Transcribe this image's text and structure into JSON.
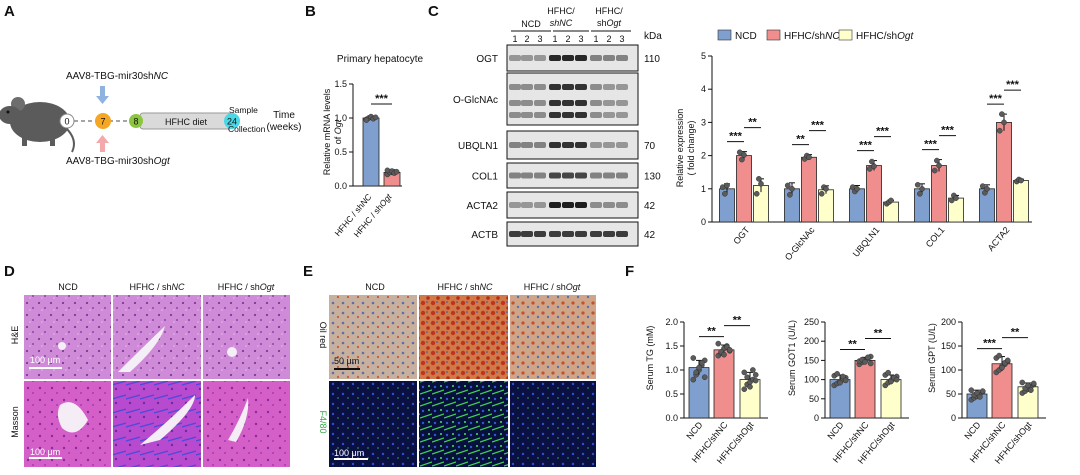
{
  "panels": {
    "a": "A",
    "b": "B",
    "c": "C",
    "d": "D",
    "e": "E",
    "f": "F"
  },
  "colors": {
    "ncd": "#7f9fce",
    "nc": "#f08e8e",
    "ogt": "#ffffcc",
    "dot": "#5b5b5b",
    "arrow_blue": "#8fb2e0",
    "arrow_pink": "#f3a9a9",
    "week7": "#f5a623",
    "week8": "#8cc63f",
    "week24": "#4ad7e6"
  },
  "panel_a": {
    "top_vector": "AAV8-TBG-mir30sh",
    "top_vector_gene": "NC",
    "bottom_vector": "AAV8-TBG-mir30sh",
    "bottom_vector_gene": "Ogt",
    "weeks": [
      "0",
      "7",
      "8",
      "24"
    ],
    "diet_label": "HFHC diet",
    "sample": "Sample",
    "collection": "Collection",
    "time": "Time",
    "time_unit": "(weeks)"
  },
  "panel_b": {
    "title": "Primary hepatocyte",
    "ylabel_line1": "Relative mRNA levels",
    "ylabel_line2": "of",
    "ylabel_gene": "Ogt",
    "yticks": [
      "0.0",
      "0.5",
      "1.0",
      "1.5"
    ],
    "categories": [
      "HFHC / shNC",
      "HFHC / shOgt"
    ],
    "significance": "***"
  },
  "panel_c": {
    "groups": [
      {
        "line1": "NCD",
        "line2": ""
      },
      {
        "line1": "HFHC/",
        "line2": "shNC"
      },
      {
        "line1": "HFHC/",
        "line2": "shOgt"
      }
    ],
    "lanes": [
      "1",
      "2",
      "3",
      "1",
      "2",
      "3",
      "1",
      "2",
      "3"
    ],
    "kda": "kDa",
    "blots": [
      {
        "label": "OGT",
        "kda": "110"
      },
      {
        "label": "O-GlcNAc",
        "kda": ""
      },
      {
        "label": "UBQLN1",
        "kda": "70"
      },
      {
        "label": "COL1",
        "kda": "130"
      },
      {
        "label": "ACTA2",
        "kda": "42"
      },
      {
        "label": "ACTB",
        "kda": "42"
      }
    ],
    "legend": [
      "NCD",
      "HFHC/shNC",
      "HFHC/shOgt"
    ],
    "ylabel_line1": "Relative expression",
    "ylabel_line2": "( fold change)",
    "yticks": [
      "0",
      "1",
      "2",
      "3",
      "4",
      "5"
    ],
    "sig_labels": [
      "***",
      "**",
      "**",
      "***",
      "***",
      "***",
      "***",
      "***",
      "***",
      "***"
    ]
  },
  "panel_d": {
    "columns": [
      "NCD",
      "HFHC / shNC",
      "HFHC / shOgt"
    ],
    "rows": [
      "H&E",
      "Masson"
    ],
    "scale": "100 μm"
  },
  "panel_e": {
    "columns": [
      "NCD",
      "HFHC / shNC",
      "HFHC / shOgt"
    ],
    "rows": [
      "Oil red",
      "F4/80"
    ],
    "scale_top": "50 μm",
    "scale_bottom": "100 μm"
  },
  "panel_f": {
    "categories": [
      "NCD",
      "HFHC/shNC",
      "HFHC/shOgt"
    ],
    "sig_labels": [
      "**",
      "**",
      "**",
      "**",
      "***",
      "**"
    ]
  },
  "chart_data": [
    {
      "type": "bar",
      "title": "Primary hepatocyte",
      "ylabel": "Relative mRNA levels of Ogt",
      "categories": [
        "HFHC / shNC",
        "HFHC / shOgt"
      ],
      "values": [
        1.0,
        0.2
      ],
      "errors": [
        0.03,
        0.04
      ],
      "points": [
        [
          0.98,
          1.0,
          1.02,
          0.99,
          1.01,
          0.97
        ],
        [
          0.17,
          0.2,
          0.22,
          0.19,
          0.21,
          0.23
        ]
      ],
      "ylim": [
        0,
        1.5
      ],
      "yticks": [
        0,
        0.5,
        1.0,
        1.5
      ],
      "significance": [
        "***"
      ]
    },
    {
      "type": "bar",
      "ylabel": "Relative expression ( fold change)",
      "categories": [
        "OGT",
        "O-GlcNAc",
        "UBQLN1",
        "COL1",
        "ACTA2"
      ],
      "series": [
        {
          "name": "NCD",
          "values": [
            1.0,
            1.0,
            1.0,
            1.0,
            1.0
          ],
          "errors": [
            0.15,
            0.18,
            0.1,
            0.15,
            0.12
          ],
          "points": [
            [
              1.05,
              0.85,
              1.1
            ],
            [
              1.1,
              0.82,
              1.0
            ],
            [
              1.05,
              0.92,
              1.0
            ],
            [
              1.12,
              0.85,
              1.0
            ],
            [
              1.08,
              0.88,
              1.0
            ]
          ]
        },
        {
          "name": "HFHC/shNC",
          "values": [
            2.0,
            1.95,
            1.7,
            1.7,
            3.0
          ],
          "errors": [
            0.12,
            0.08,
            0.15,
            0.18,
            0.25
          ],
          "points": [
            [
              2.1,
              1.88,
              2.02
            ],
            [
              1.9,
              2.0,
              1.95
            ],
            [
              1.6,
              1.82,
              1.68
            ],
            [
              1.55,
              1.85,
              1.7
            ],
            [
              2.75,
              3.25,
              3.0
            ]
          ]
        },
        {
          "name": "HFHC/shOgt",
          "values": [
            1.1,
            0.97,
            0.6,
            0.72,
            1.25
          ],
          "errors": [
            0.2,
            0.12,
            0.05,
            0.08,
            0.04
          ],
          "points": [
            [
              0.85,
              1.3,
              1.15
            ],
            [
              0.85,
              1.05,
              1.0
            ],
            [
              0.55,
              0.6,
              0.65
            ],
            [
              0.65,
              0.8,
              0.72
            ],
            [
              1.22,
              1.28,
              1.25
            ]
          ]
        }
      ],
      "ylim": [
        0,
        5
      ],
      "yticks": [
        0,
        1,
        2,
        3,
        4,
        5
      ],
      "legend": "top",
      "significance": [
        {
          "category": "OGT",
          "pairs": [
            [
              "NCD",
              "HFHC/shNC",
              "***"
            ],
            [
              "HFHC/shNC",
              "HFHC/shOgt",
              "**"
            ]
          ]
        },
        {
          "category": "O-GlcNAc",
          "pairs": [
            [
              "NCD",
              "HFHC/shNC",
              "**"
            ],
            [
              "HFHC/shNC",
              "HFHC/shOgt",
              "***"
            ]
          ]
        },
        {
          "category": "UBQLN1",
          "pairs": [
            [
              "NCD",
              "HFHC/shNC",
              "***"
            ],
            [
              "HFHC/shNC",
              "HFHC/shOgt",
              "***"
            ]
          ]
        },
        {
          "category": "COL1",
          "pairs": [
            [
              "NCD",
              "HFHC/shNC",
              "***"
            ],
            [
              "HFHC/shNC",
              "HFHC/shOgt",
              "***"
            ]
          ]
        },
        {
          "category": "ACTA2",
          "pairs": [
            [
              "NCD",
              "HFHC/shNC",
              "***"
            ],
            [
              "HFHC/shNC",
              "HFHC/shOgt",
              "***"
            ]
          ]
        }
      ]
    },
    {
      "type": "bar",
      "ylabel": "Serum TG (mM)",
      "categories": [
        "NCD",
        "HFHC/shNC",
        "HFHC/shOgt"
      ],
      "values": [
        1.05,
        1.42,
        0.8
      ],
      "errors": [
        0.15,
        0.1,
        0.15
      ],
      "points": [
        [
          0.8,
          0.9,
          1.0,
          1.1,
          1.2,
          1.25,
          0.95,
          1.05,
          1.15,
          0.85
        ],
        [
          1.3,
          1.35,
          1.45,
          1.5,
          1.4,
          1.55,
          1.38,
          1.32,
          1.48,
          1.42
        ],
        [
          0.6,
          0.7,
          0.75,
          0.8,
          0.9,
          0.95,
          0.85,
          0.65,
          1.0,
          0.78
        ]
      ],
      "ylim": [
        0,
        2.0
      ],
      "yticks": [
        0.0,
        0.5,
        1.0,
        1.5,
        2.0
      ],
      "significance": [
        "**",
        "**"
      ]
    },
    {
      "type": "bar",
      "ylabel": "Serum GOT1 (U/L)",
      "categories": [
        "NCD",
        "HFHC/shNC",
        "HFHC/shOgt"
      ],
      "values": [
        100,
        150,
        100
      ],
      "errors": [
        12,
        8,
        12
      ],
      "points": [
        [
          85,
          90,
          95,
          100,
          105,
          110,
          115,
          92,
          108,
          98
        ],
        [
          140,
          145,
          150,
          155,
          160,
          148,
          152,
          146,
          158,
          142
        ],
        [
          85,
          92,
          98,
          102,
          108,
          112,
          118,
          95,
          105,
          100
        ]
      ],
      "ylim": [
        0,
        250
      ],
      "yticks": [
        0,
        50,
        100,
        150,
        200,
        250
      ],
      "significance": [
        "**",
        "**"
      ]
    },
    {
      "type": "bar",
      "ylabel": "Serum GPT (U/L)",
      "categories": [
        "NCD",
        "HFHC/shNC",
        "HFHC/shOgt"
      ],
      "values": [
        50,
        113,
        65
      ],
      "errors": [
        8,
        15,
        8
      ],
      "points": [
        [
          38,
          42,
          45,
          50,
          55,
          58,
          48,
          52,
          44,
          56
        ],
        [
          95,
          100,
          108,
          112,
          118,
          125,
          130,
          105,
          115,
          120
        ],
        [
          52,
          56,
          60,
          65,
          70,
          74,
          62,
          68,
          58,
          72
        ]
      ],
      "ylim": [
        0,
        200
      ],
      "yticks": [
        0,
        50,
        100,
        150,
        200
      ],
      "significance": [
        "***",
        "**"
      ]
    }
  ]
}
